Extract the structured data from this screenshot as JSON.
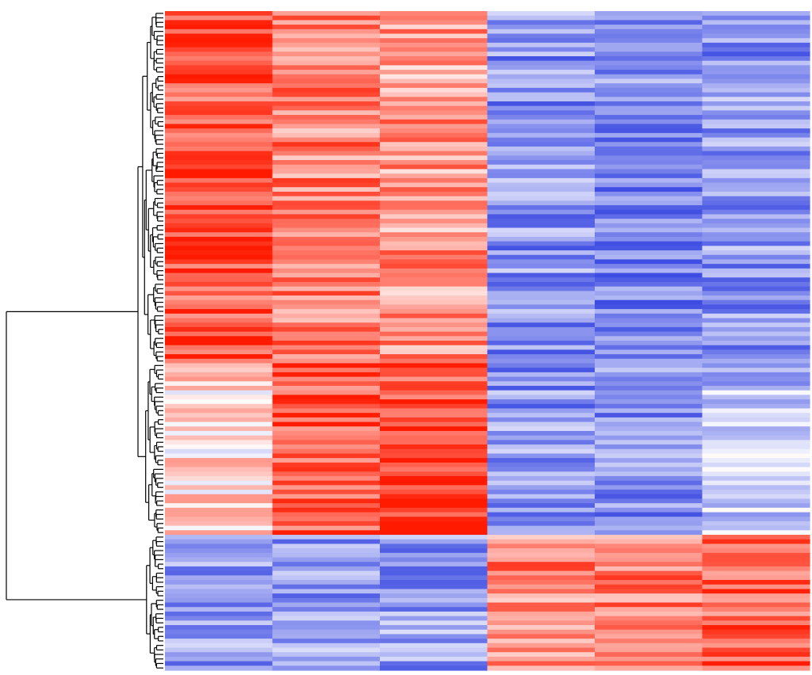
{
  "chart_data": {
    "type": "heatmap",
    "title": "",
    "xlabel": "",
    "ylabel": "",
    "columns": 6,
    "value_range": [
      -1,
      1
    ],
    "color_low": "#2f3fe0",
    "color_mid": "#ffffff",
    "color_high": "#ff1a00",
    "row_dendrogram": true,
    "clusters": [
      {
        "rows": 78,
        "values": [
          0.75,
          0.55,
          0.45,
          -0.55,
          -0.6,
          -0.55
        ]
      },
      {
        "rows": 38,
        "values": [
          0.15,
          0.75,
          0.8,
          -0.55,
          -0.6,
          -0.3
        ]
      },
      {
        "rows": 30,
        "values": [
          -0.5,
          -0.5,
          -0.5,
          0.55,
          0.6,
          0.7
        ]
      }
    ]
  }
}
